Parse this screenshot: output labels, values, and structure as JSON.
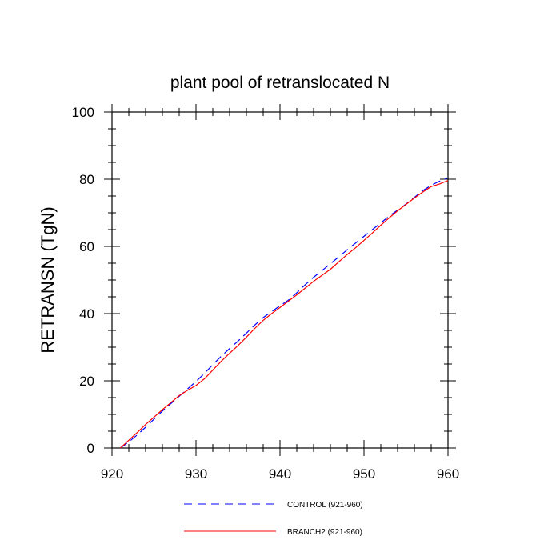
{
  "chart_data": {
    "type": "line",
    "title": "plant pool of retranslocated N",
    "xlabel": "",
    "ylabel": "RETRANSN  (TgN)",
    "xlim": [
      920,
      960
    ],
    "ylim": [
      0,
      100
    ],
    "xticks": [
      920,
      930,
      940,
      950,
      960
    ],
    "yticks": [
      0,
      20,
      40,
      60,
      80,
      100
    ],
    "grid": false,
    "legend_position": "bottom",
    "series": [
      {
        "name": "CONTROL (921-960)",
        "color": "#0000ff",
        "dash": "dashed",
        "x": [
          921,
          922,
          923,
          924,
          925,
          926,
          927,
          928,
          929,
          930,
          931,
          932,
          933,
          934,
          935,
          936,
          937,
          938,
          939,
          940,
          941,
          942,
          943,
          944,
          945,
          946,
          947,
          948,
          949,
          950,
          951,
          952,
          953,
          954,
          955,
          956,
          957,
          958,
          959,
          960
        ],
        "y": [
          0,
          1.8,
          3.9,
          6.2,
          8.6,
          11.0,
          13.2,
          15.4,
          17.6,
          19.8,
          22.2,
          24.8,
          27.3,
          29.6,
          31.8,
          34.2,
          36.6,
          38.8,
          40.6,
          42.3,
          44.0,
          46.2,
          48.6,
          50.8,
          52.8,
          54.8,
          56.9,
          59.0,
          61.0,
          63.0,
          65.0,
          67.0,
          69.0,
          70.8,
          72.6,
          74.6,
          76.6,
          78.2,
          79.4,
          80.4
        ]
      },
      {
        "name": "BRANCH2 (921-960)",
        "color": "#ff0000",
        "dash": "solid",
        "x": [
          921,
          922,
          923,
          924,
          925,
          926,
          927,
          928,
          929,
          930,
          931,
          932,
          933,
          934,
          935,
          936,
          937,
          938,
          939,
          940,
          941,
          942,
          943,
          944,
          945,
          946,
          947,
          948,
          949,
          950,
          951,
          952,
          953,
          954,
          955,
          956,
          957,
          958,
          959,
          960
        ],
        "y": [
          0,
          2.3,
          4.6,
          7.0,
          9.2,
          11.4,
          13.5,
          15.6,
          17.2,
          18.6,
          20.6,
          23.2,
          25.8,
          28.2,
          30.5,
          33.0,
          35.6,
          38.0,
          40.0,
          41.8,
          43.7,
          45.6,
          47.6,
          49.6,
          51.4,
          53.2,
          55.4,
          57.6,
          59.6,
          61.8,
          64.0,
          66.3,
          68.5,
          70.6,
          72.5,
          74.4,
          76.2,
          77.8,
          78.6,
          79.6
        ]
      }
    ]
  }
}
